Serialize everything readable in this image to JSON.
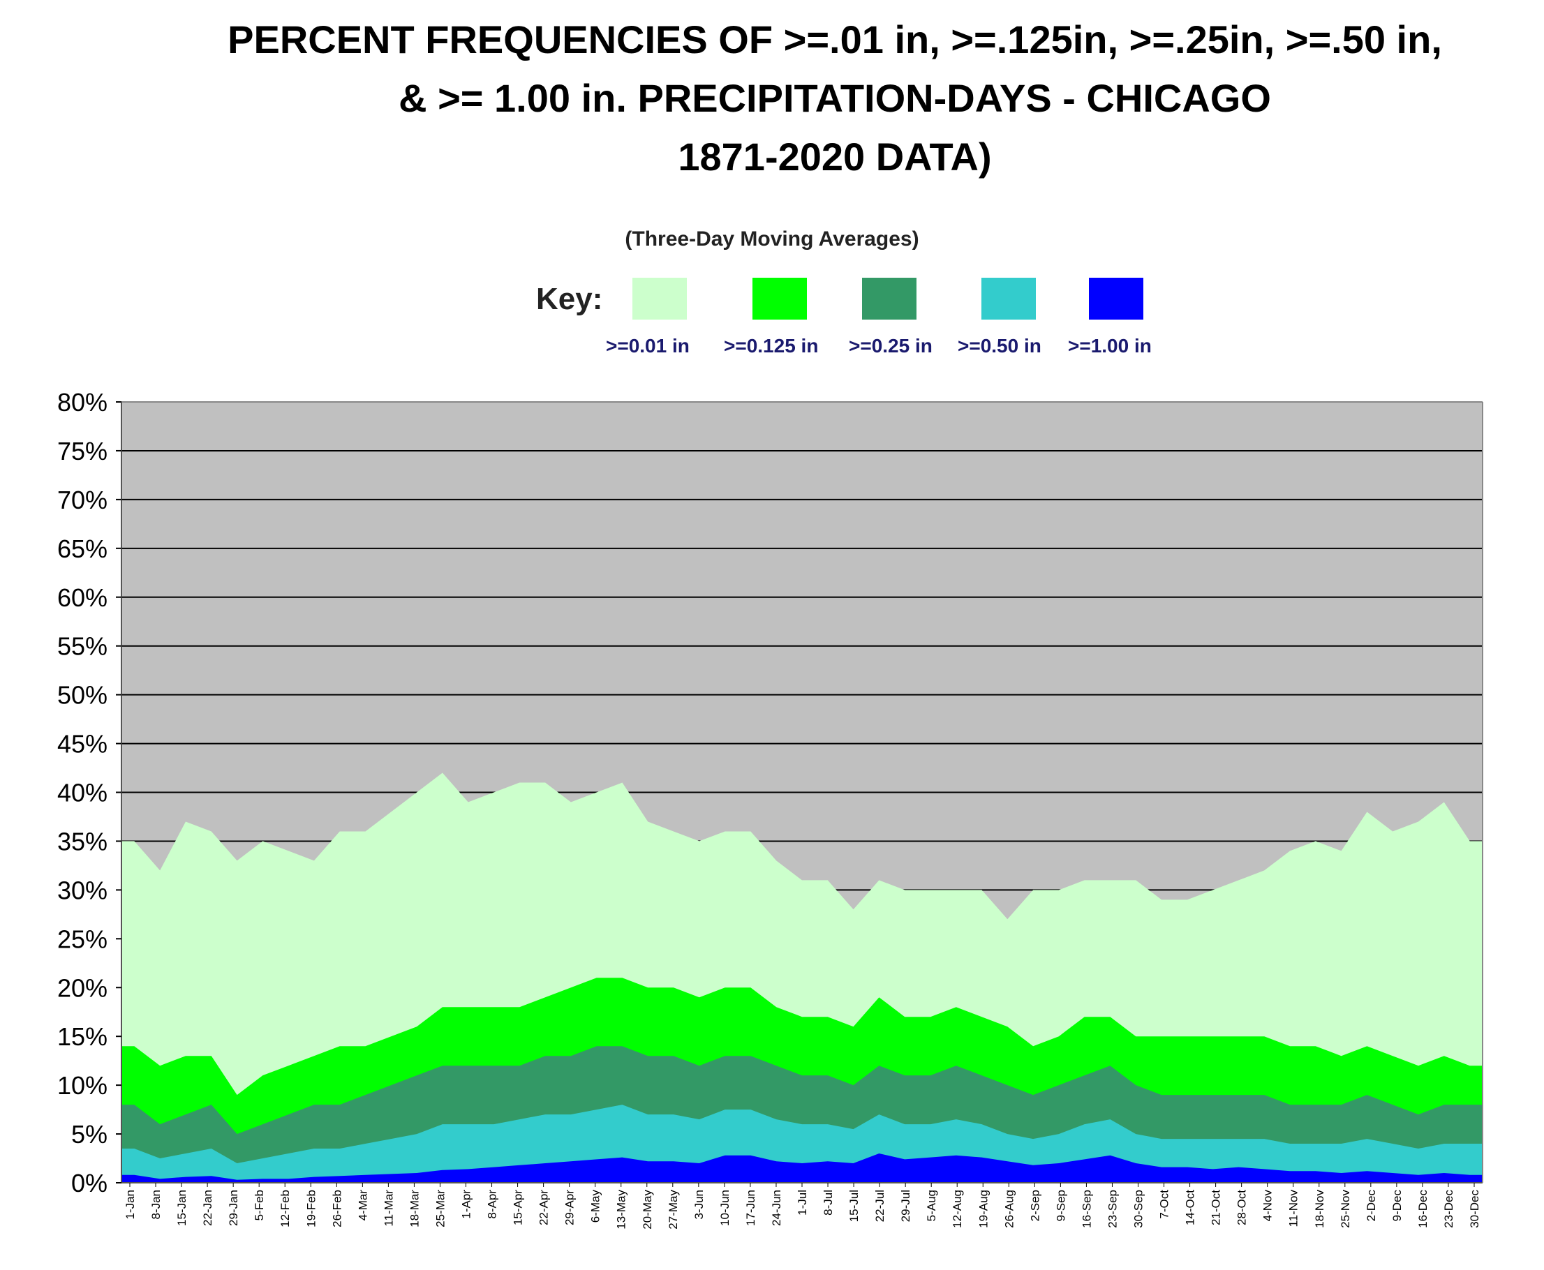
{
  "title_lines": [
    "PERCENT FREQUENCIES OF >=.01 in, >=.125in, >=.25in, >=.50 in,",
    "& >= 1.00 in. PRECIPITATION-DAYS -  CHICAGO",
    "1871-2020 DATA)"
  ],
  "subtitle": "(Three-Day Moving Averages)",
  "key": {
    "label": "Key:",
    "items": [
      {
        "label": ">=0.01 in",
        "color": "#ccffcc"
      },
      {
        "label": ">=0.125 in",
        "color": "#00ff00"
      },
      {
        "label": ">=0.25 in",
        "color": "#339966"
      },
      {
        "label": ">=0.50 in",
        "color": "#33cccc"
      },
      {
        "label": ">=1.00 in",
        "color": "#0000ff"
      }
    ]
  },
  "chart_data": {
    "type": "area",
    "plot_background": "#c0c0c0",
    "grid": true,
    "ylim": [
      0,
      80
    ],
    "yticks": [
      "0%",
      "5%",
      "10%",
      "15%",
      "20%",
      "25%",
      "30%",
      "35%",
      "40%",
      "45%",
      "50%",
      "55%",
      "60%",
      "65%",
      "70%",
      "75%",
      "80%"
    ],
    "xtick_labels": [
      "1-Jan",
      "8-Jan",
      "15-Jan",
      "22-Jan",
      "29-Jan",
      "5-Feb",
      "12-Feb",
      "19-Feb",
      "26-Feb",
      "4-Mar",
      "11-Mar",
      "18-Mar",
      "25-Mar",
      "1-Apr",
      "8-Apr",
      "15-Apr",
      "22-Apr",
      "29-Apr",
      "6-May",
      "13-May",
      "20-May",
      "27-May",
      "3-Jun",
      "10-Jun",
      "17-Jun",
      "24-Jun",
      "1-Jul",
      "8-Jul",
      "15-Jul",
      "22-Jul",
      "29-Jul",
      "5-Aug",
      "12-Aug",
      "19-Aug",
      "26-Aug",
      "2-Sep",
      "9-Sep",
      "16-Sep",
      "23-Sep",
      "30-Sep",
      "7-Oct",
      "14-Oct",
      "21-Oct",
      "28-Oct",
      "4-Nov",
      "11-Nov",
      "18-Nov",
      "25-Nov",
      "2-Dec",
      "9-Dec",
      "16-Dec",
      "23-Dec",
      "30-Dec"
    ],
    "series": [
      {
        "name": ">=0.01 in",
        "color": "#ccffcc",
        "values": [
          35,
          32,
          37,
          36,
          33,
          35,
          34,
          33,
          36,
          36,
          38,
          40,
          42,
          39,
          40,
          41,
          41,
          39,
          40,
          41,
          37,
          36,
          35,
          36,
          36,
          33,
          31,
          31,
          28,
          31,
          30,
          30,
          30,
          30,
          27,
          30,
          30,
          31,
          31,
          31,
          29,
          29,
          30,
          31,
          32,
          34,
          35,
          34,
          38,
          36,
          37,
          39,
          35
        ]
      },
      {
        "name": ">=0.125 in",
        "color": "#00ff00",
        "values": [
          14,
          12,
          13,
          13,
          9,
          11,
          12,
          13,
          14,
          14,
          15,
          16,
          18,
          18,
          18,
          18,
          19,
          20,
          21,
          21,
          20,
          20,
          19,
          20,
          20,
          18,
          17,
          17,
          16,
          19,
          17,
          17,
          18,
          17,
          16,
          14,
          15,
          17,
          17,
          15,
          15,
          15,
          15,
          15,
          15,
          14,
          14,
          13,
          14,
          13,
          12,
          13,
          12
        ]
      },
      {
        "name": ">=0.25 in",
        "color": "#339966",
        "values": [
          8,
          6,
          7,
          8,
          5,
          6,
          7,
          8,
          8,
          9,
          10,
          11,
          12,
          12,
          12,
          12,
          13,
          13,
          14,
          14,
          13,
          13,
          12,
          13,
          13,
          12,
          11,
          11,
          10,
          12,
          11,
          11,
          12,
          11,
          10,
          9,
          10,
          11,
          12,
          10,
          9,
          9,
          9,
          9,
          9,
          8,
          8,
          8,
          9,
          8,
          7,
          8,
          8
        ]
      },
      {
        "name": ">=0.50 in",
        "color": "#33cccc",
        "values": [
          3.5,
          2.5,
          3,
          3.5,
          2,
          2.5,
          3,
          3.5,
          3.5,
          4,
          4.5,
          5,
          6,
          6,
          6,
          6.5,
          7,
          7,
          7.5,
          8,
          7,
          7,
          6.5,
          7.5,
          7.5,
          6.5,
          6,
          6,
          5.5,
          7,
          6,
          6,
          6.5,
          6,
          5,
          4.5,
          5,
          6,
          6.5,
          5,
          4.5,
          4.5,
          4.5,
          4.5,
          4.5,
          4,
          4,
          4,
          4.5,
          4,
          3.5,
          4,
          4
        ]
      },
      {
        "name": ">=1.00 in",
        "color": "#0000ff",
        "values": [
          0.8,
          0.4,
          0.6,
          0.7,
          0.3,
          0.4,
          0.4,
          0.6,
          0.7,
          0.8,
          0.9,
          1,
          1.3,
          1.4,
          1.6,
          1.8,
          2,
          2.2,
          2.4,
          2.6,
          2.2,
          2.2,
          2,
          2.8,
          2.8,
          2.2,
          2,
          2.2,
          2,
          3,
          2.4,
          2.6,
          2.8,
          2.6,
          2.2,
          1.8,
          2,
          2.4,
          2.8,
          2,
          1.6,
          1.6,
          1.4,
          1.6,
          1.4,
          1.2,
          1.2,
          1,
          1.2,
          1,
          0.8,
          1,
          0.8
        ]
      }
    ]
  }
}
